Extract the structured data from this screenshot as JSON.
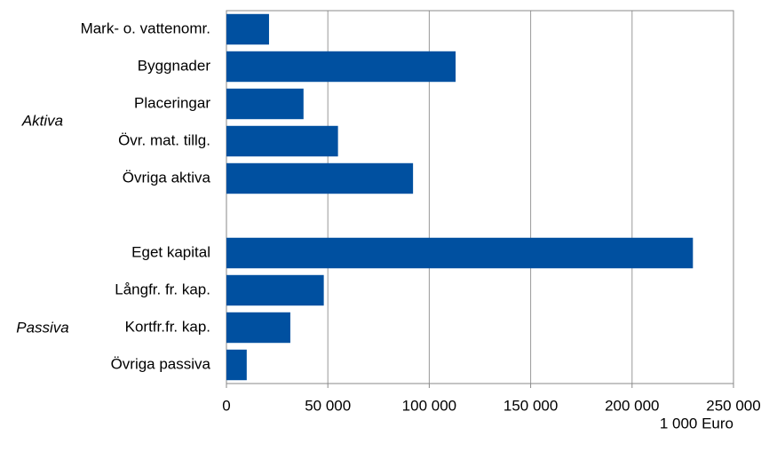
{
  "chart_data": {
    "type": "hbar",
    "categories": [
      "Mark- o. vattenomr.",
      "Byggnader",
      "Placeringar",
      "Övr. mat. tillg.",
      "Övriga aktiva",
      null,
      "Eget kapital",
      "Långfr. fr. kap.",
      "Kortfr.fr. kap.",
      "Övriga passiva"
    ],
    "values": [
      21000,
      113000,
      38000,
      55000,
      92000,
      null,
      230000,
      48000,
      31500,
      10000
    ],
    "group_labels": [
      "Aktiva",
      "Passiva"
    ],
    "color": "#0050a0",
    "xlim": [
      0,
      250000
    ],
    "xticks": [
      0,
      {
        "value": 50000,
        "label": "50 000"
      },
      {
        "value": 100000,
        "label": "100 000"
      },
      {
        "value": 150000,
        "label": "150 000"
      },
      {
        "value": 200000,
        "label": "200 000"
      },
      {
        "value": 250000,
        "label": "250 000"
      }
    ],
    "x_label": "1 000 Euro",
    "grid": true
  }
}
